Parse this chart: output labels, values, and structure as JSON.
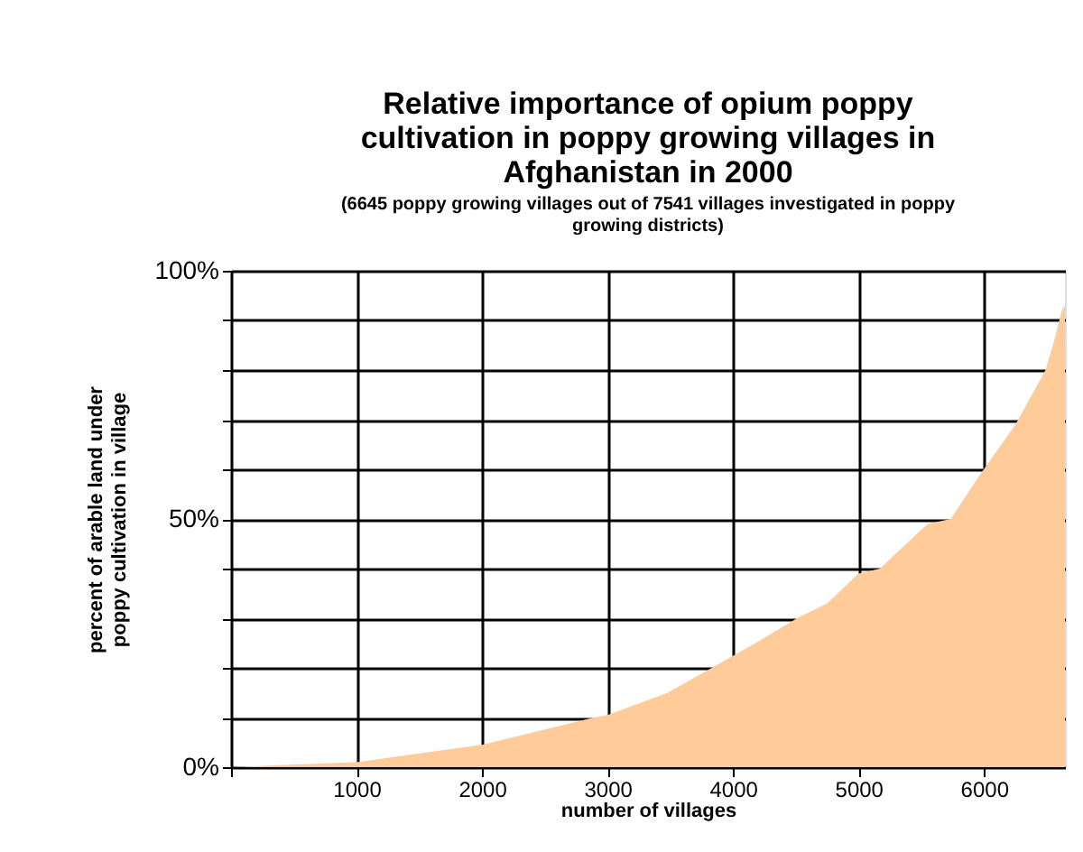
{
  "chart_data": {
    "type": "area",
    "title": "Relative importance of opium poppy cultivation in poppy growing villages in Afghanistan in 2000",
    "subtitle": "(6645 poppy growing villages out of 7541 villages investigated in poppy growing districts)",
    "xlabel": "number of villages",
    "ylabel": "percent of arable land  under poppy cultivation in village",
    "x": [
      0,
      470,
      1000,
      2000,
      2890,
      3000,
      3480,
      3900,
      4180,
      4510,
      4750,
      5000,
      5170,
      5550,
      5735,
      5970,
      6250,
      6490,
      6560,
      6620,
      6645
    ],
    "series": [
      {
        "color": "#ffcc99",
        "values": [
          0,
          0.5,
          1,
          4.5,
          10,
          10.5,
          15,
          21,
          25,
          30,
          33,
          39,
          40,
          49,
          50,
          59,
          69,
          80,
          86,
          92,
          93
        ]
      }
    ],
    "xlim": [
      0,
      6645
    ],
    "xticks": [
      {
        "value": 0,
        "label": null
      },
      1000,
      2000,
      3000,
      4000,
      5000,
      6000
    ],
    "ylim": [
      0,
      100
    ],
    "yticks": [
      {
        "value": 0,
        "label": "0%"
      },
      {
        "value": 10,
        "label": null
      },
      {
        "value": 20,
        "label": null
      },
      {
        "value": 30,
        "label": null
      },
      {
        "value": 40,
        "label": null
      },
      {
        "value": 50,
        "label": "50%"
      },
      {
        "value": 60,
        "label": null
      },
      {
        "value": 70,
        "label": null
      },
      {
        "value": 80,
        "label": null
      },
      {
        "value": 90,
        "label": null
      },
      {
        "value": 100,
        "label": "100%"
      }
    ],
    "grid": true
  }
}
